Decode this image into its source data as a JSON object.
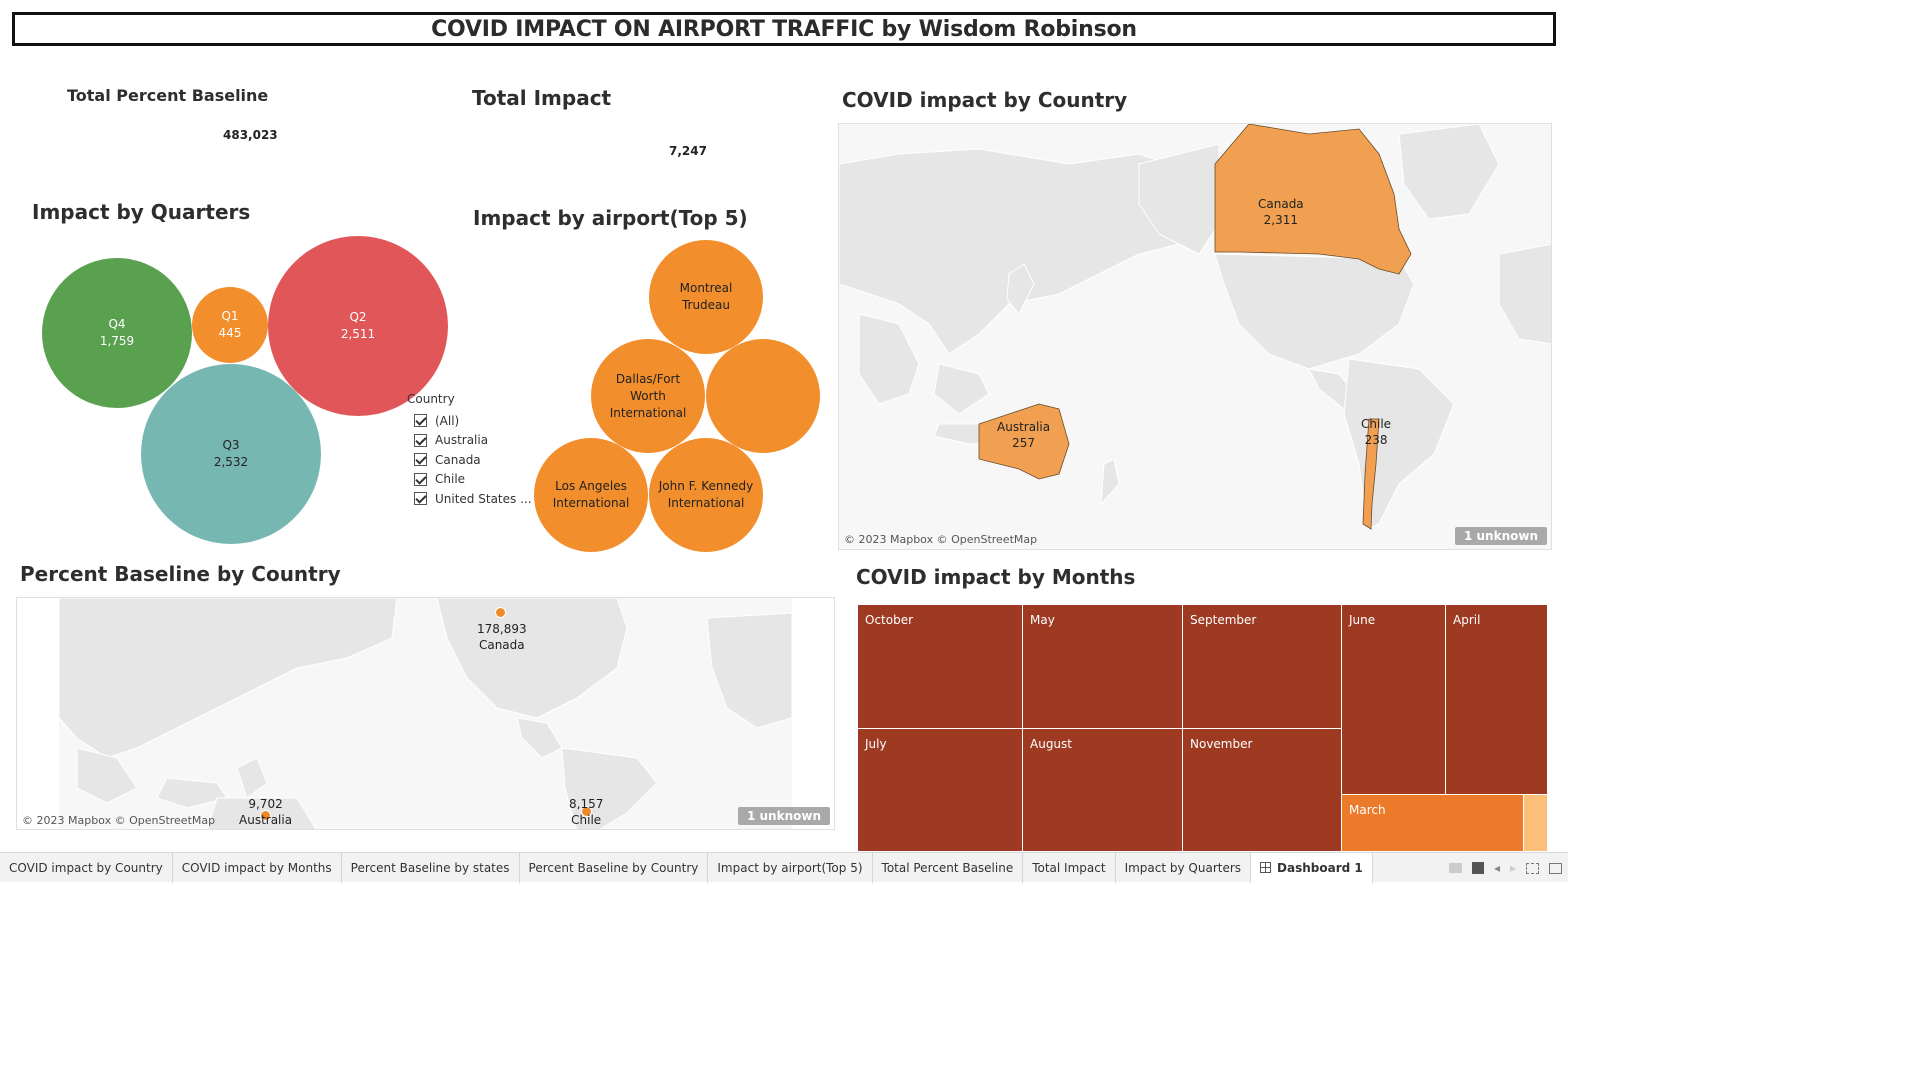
{
  "title": "COVID IMPACT ON AIRPORT TRAFFIC by Wisdom Robinson",
  "kpis": {
    "total_percent_baseline": {
      "label": "Total Percent Baseline",
      "value": "483,023"
    },
    "total_impact": {
      "label": "Total Impact",
      "value": "7,247"
    }
  },
  "quarters": {
    "title": "Impact by Quarters",
    "bubbles": [
      {
        "name": "Q4",
        "value": "1,759",
        "color": "#59a14f"
      },
      {
        "name": "Q1",
        "value": "445",
        "color": "#f28e2b"
      },
      {
        "name": "Q2",
        "value": "2,511",
        "color": "#e15759"
      },
      {
        "name": "Q3",
        "value": "2,532",
        "color": "#76b7b2"
      }
    ]
  },
  "legend": {
    "title": "Country",
    "items": [
      "(All)",
      "Australia",
      "Canada",
      "Chile",
      "United States ..."
    ]
  },
  "airports": {
    "title": "Impact by airport(Top 5)",
    "color": "#f28e2b",
    "bubbles": [
      {
        "line1": "Montreal",
        "line2": "Trudeau",
        "line3": ""
      },
      {
        "line1": "Dallas/Fort",
        "line2": "Worth",
        "line3": "International"
      },
      {
        "line1": "",
        "line2": "",
        "line3": ""
      },
      {
        "line1": "Los Angeles",
        "line2": "International",
        "line3": ""
      },
      {
        "line1": "John F. Kennedy",
        "line2": "International",
        "line3": ""
      }
    ]
  },
  "country_map": {
    "title": "COVID impact by Country",
    "credit": "© 2023 Mapbox © OpenStreetMap",
    "unknown": "1 unknown",
    "fill_color": "#f0a050",
    "labels": [
      {
        "name": "Canada",
        "value": "2,311"
      },
      {
        "name": "Australia",
        "value": "257"
      },
      {
        "name": "Chile",
        "value": "238"
      }
    ]
  },
  "baseline_map": {
    "title": "Percent Baseline by Country",
    "credit": "© 2023 Mapbox © OpenStreetMap",
    "unknown": "1 unknown",
    "points": [
      {
        "value": "178,893",
        "name": "Canada"
      },
      {
        "value": "9,702",
        "name": "Australia"
      },
      {
        "value": "8,157",
        "name": "Chile"
      }
    ]
  },
  "months": {
    "title": "COVID impact by Months",
    "cells": [
      "October",
      "May",
      "September",
      "June",
      "April",
      "July",
      "August",
      "November",
      "March",
      ""
    ],
    "colors": {
      "dark": "#9e3a22",
      "orange": "#ec7a2b",
      "light": "#fbbf7a"
    }
  },
  "tabs": [
    "COVID impact by Country",
    "COVID impact by Months",
    "Percent Baseline by states",
    "Percent Baseline by Country",
    "Impact by airport(Top 5)",
    "Total Percent Baseline",
    "Total Impact",
    "Impact by Quarters",
    "Dashboard 1"
  ]
}
